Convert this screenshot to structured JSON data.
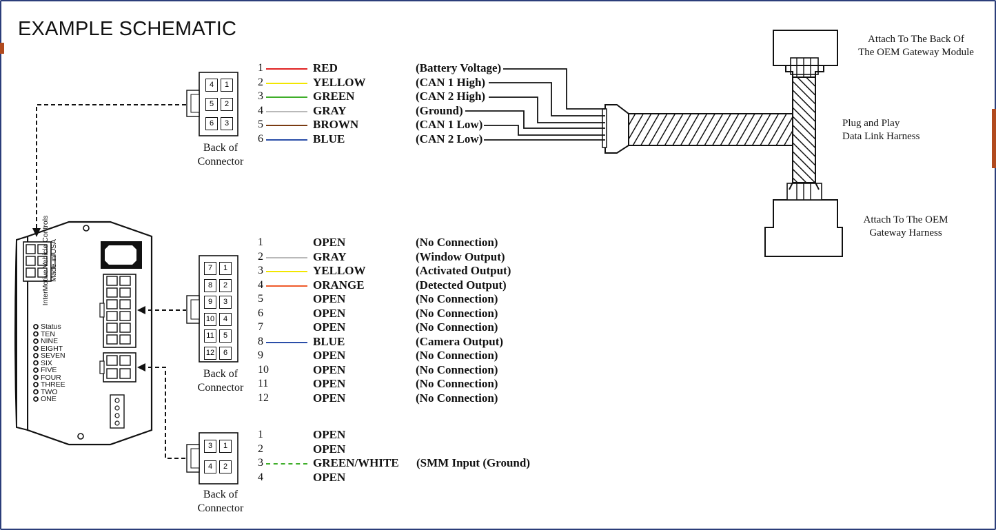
{
  "title": "EXAMPLE SCHEMATIC",
  "connector_label": [
    "Back of",
    "Connector"
  ],
  "gateway_top": [
    "Attach To The Back Of",
    "The OEM Gateway Module"
  ],
  "harness": [
    "Plug and Play",
    "Data Link Harness"
  ],
  "gateway_bottom": [
    "Attach To The OEM",
    "Gateway Harness"
  ],
  "module": {
    "brand_line1": "InterMotive Vehicle Controls",
    "brand_line2": "Made in USA",
    "leds": [
      "Status",
      "TEN",
      "NINE",
      "EIGHT",
      "SEVEN",
      "SIX",
      "FIVE",
      "FOUR",
      "THREE",
      "TWO",
      "ONE"
    ]
  },
  "connector1": {
    "pins": [
      [
        "4",
        "1"
      ],
      [
        "5",
        "2"
      ],
      [
        "6",
        "3"
      ]
    ],
    "rows": [
      {
        "num": "1",
        "color": "RED",
        "desc": "(Battery Voltage)",
        "wire": "#e02020"
      },
      {
        "num": "2",
        "color": "YELLOW",
        "desc": "(CAN 1 High)",
        "wire": "#f2e600"
      },
      {
        "num": "3",
        "color": "GREEN",
        "desc": "(CAN 2 High)",
        "wire": "#3fae2a"
      },
      {
        "num": "4",
        "color": "GRAY",
        "desc": "(Ground)",
        "wire": "#b9b9b9"
      },
      {
        "num": "5",
        "color": "BROWN",
        "desc": "(CAN 1 Low)",
        "wire": "#7a3b12"
      },
      {
        "num": "6",
        "color": "BLUE",
        "desc": "(CAN 2 Low)",
        "wire": "#2a4da8"
      }
    ]
  },
  "connector2": {
    "pins": [
      [
        "7",
        "1"
      ],
      [
        "8",
        "2"
      ],
      [
        "9",
        "3"
      ],
      [
        "10",
        "4"
      ],
      [
        "11",
        "5"
      ],
      [
        "12",
        "6"
      ]
    ],
    "rows": [
      {
        "num": "1",
        "color": "OPEN",
        "desc": "(No Connection)",
        "wire": ""
      },
      {
        "num": "2",
        "color": "GRAY",
        "desc": "(Window Output)",
        "wire": "#b9b9b9"
      },
      {
        "num": "3",
        "color": "YELLOW",
        "desc": "(Activated Output)",
        "wire": "#f2e600"
      },
      {
        "num": "4",
        "color": "ORANGE",
        "desc": "(Detected Output)",
        "wire": "#ef5a2a"
      },
      {
        "num": "5",
        "color": "OPEN",
        "desc": "(No Connection)",
        "wire": ""
      },
      {
        "num": "6",
        "color": "OPEN",
        "desc": "(No Connection)",
        "wire": ""
      },
      {
        "num": "7",
        "color": "OPEN",
        "desc": "(No Connection)",
        "wire": ""
      },
      {
        "num": "8",
        "color": "BLUE",
        "desc": "(Camera Output)",
        "wire": "#2a4da8"
      },
      {
        "num": "9",
        "color": "OPEN",
        "desc": "(No Connection)",
        "wire": ""
      },
      {
        "num": "10",
        "color": "OPEN",
        "desc": "(No Connection)",
        "wire": ""
      },
      {
        "num": "11",
        "color": "OPEN",
        "desc": "(No Connection)",
        "wire": ""
      },
      {
        "num": "12",
        "color": "OPEN",
        "desc": "(No Connection)",
        "wire": ""
      }
    ]
  },
  "connector3": {
    "pins": [
      [
        "3",
        "1"
      ],
      [
        "4",
        "2"
      ]
    ],
    "rows": [
      {
        "num": "1",
        "color": "OPEN",
        "desc": "",
        "wire": ""
      },
      {
        "num": "2",
        "color": "OPEN",
        "desc": "",
        "wire": ""
      },
      {
        "num": "3",
        "color": "GREEN/WHITE",
        "desc": "(SMM Input (Ground)",
        "wire": "#3fae2a"
      },
      {
        "num": "4",
        "color": "OPEN",
        "desc": "",
        "wire": ""
      }
    ]
  }
}
